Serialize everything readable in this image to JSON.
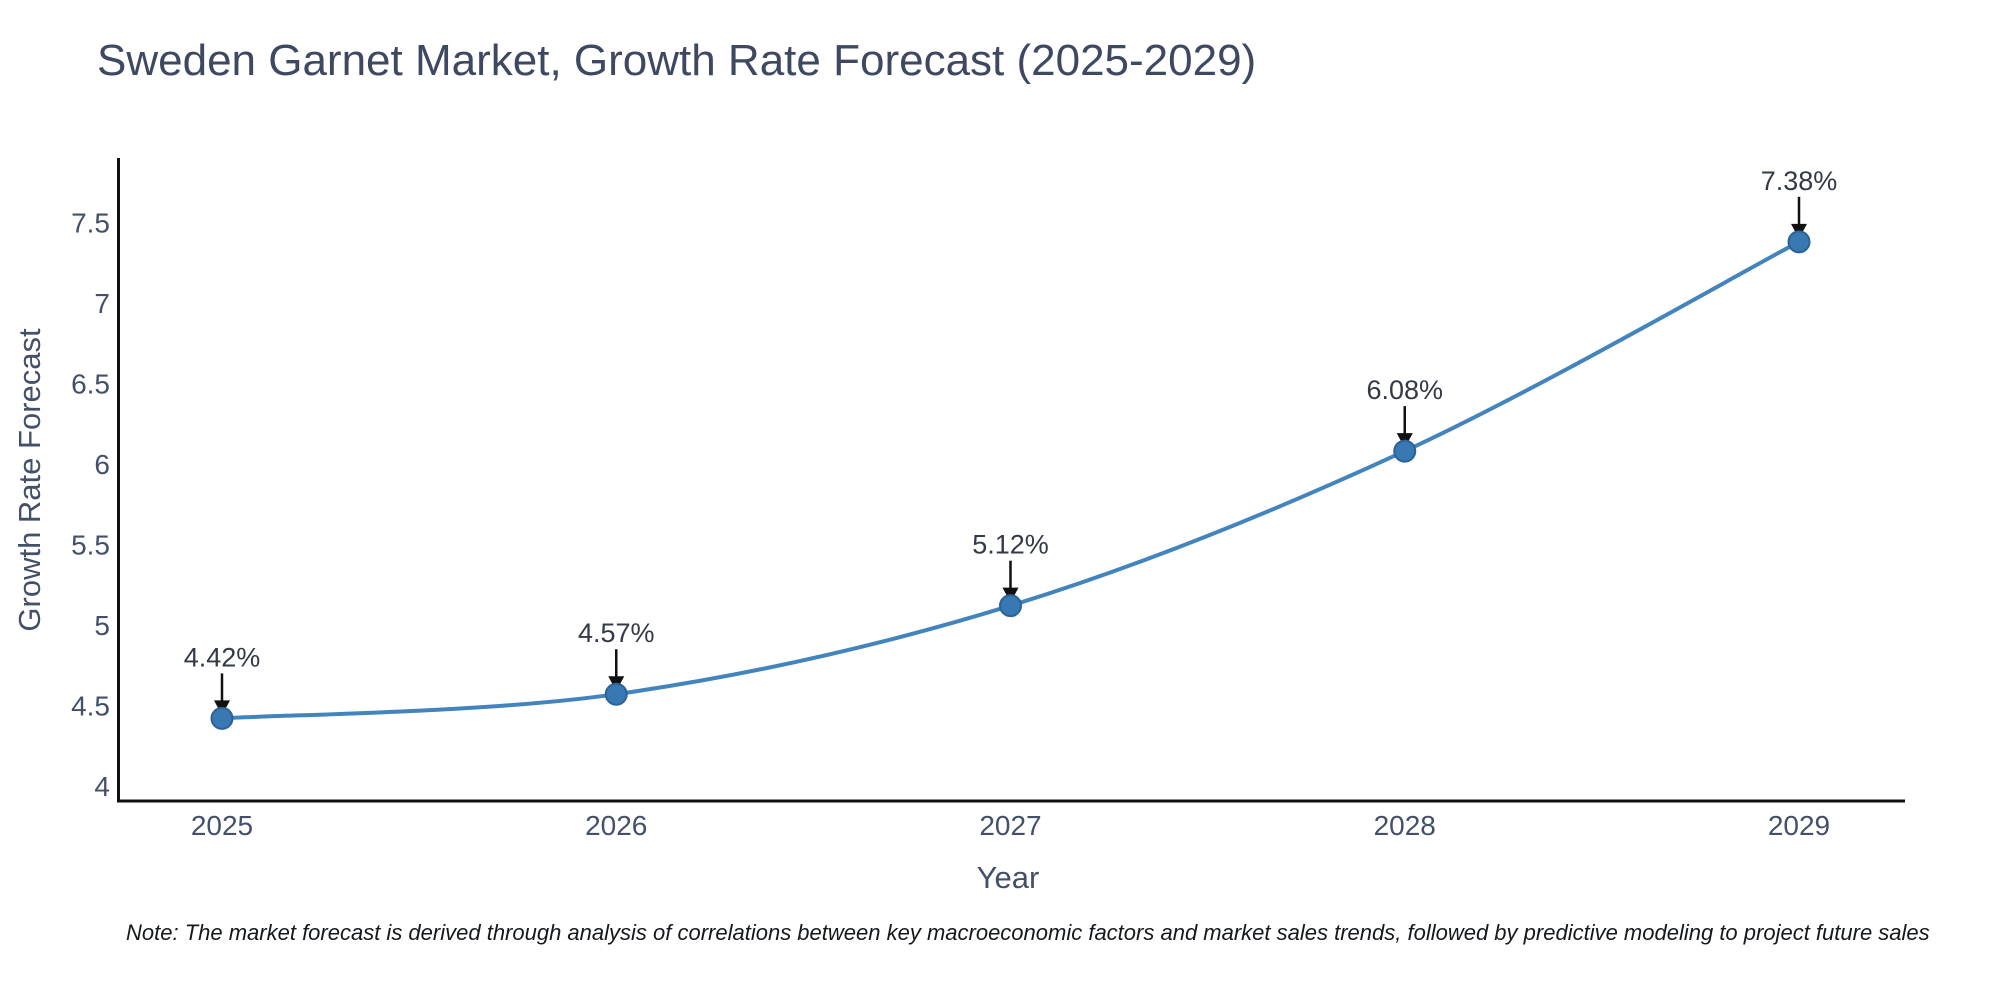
{
  "title": "Sweden Garnet Market, Growth Rate Forecast (2025-2029)",
  "note": "Note: The market forecast is derived through analysis of correlations between key macroeconomic factors and market sales trends, followed by predictive modeling to project future sales",
  "chart_data": {
    "type": "line",
    "title": "Sweden Garnet Market, Growth Rate Forecast (2025-2029)",
    "xlabel": "Year",
    "ylabel": "Growth Rate Forecast",
    "x": [
      2025,
      2026,
      2027,
      2028,
      2029
    ],
    "series": [
      {
        "name": "Growth Rate Forecast",
        "values": [
          4.42,
          4.57,
          5.12,
          6.08,
          7.38
        ]
      }
    ],
    "point_labels": [
      "4.42%",
      "4.57%",
      "5.12%",
      "6.08%",
      "7.38%"
    ],
    "yticks": [
      4,
      4.5,
      5,
      5.5,
      6,
      6.5,
      7,
      7.5
    ],
    "ylim": [
      3.9,
      7.9
    ],
    "grid": false,
    "legend": "none",
    "line_shape": "spline",
    "annotation_style": "label-with-down-arrow",
    "colors": {
      "line": "#4384bd",
      "marker": "#3878b3",
      "marker_edge": "#2d6296",
      "arrow": "#111111",
      "axis": "#111111",
      "tick_text": "#44506a",
      "label_text": "#333945",
      "title_text": "#3e4961"
    }
  }
}
